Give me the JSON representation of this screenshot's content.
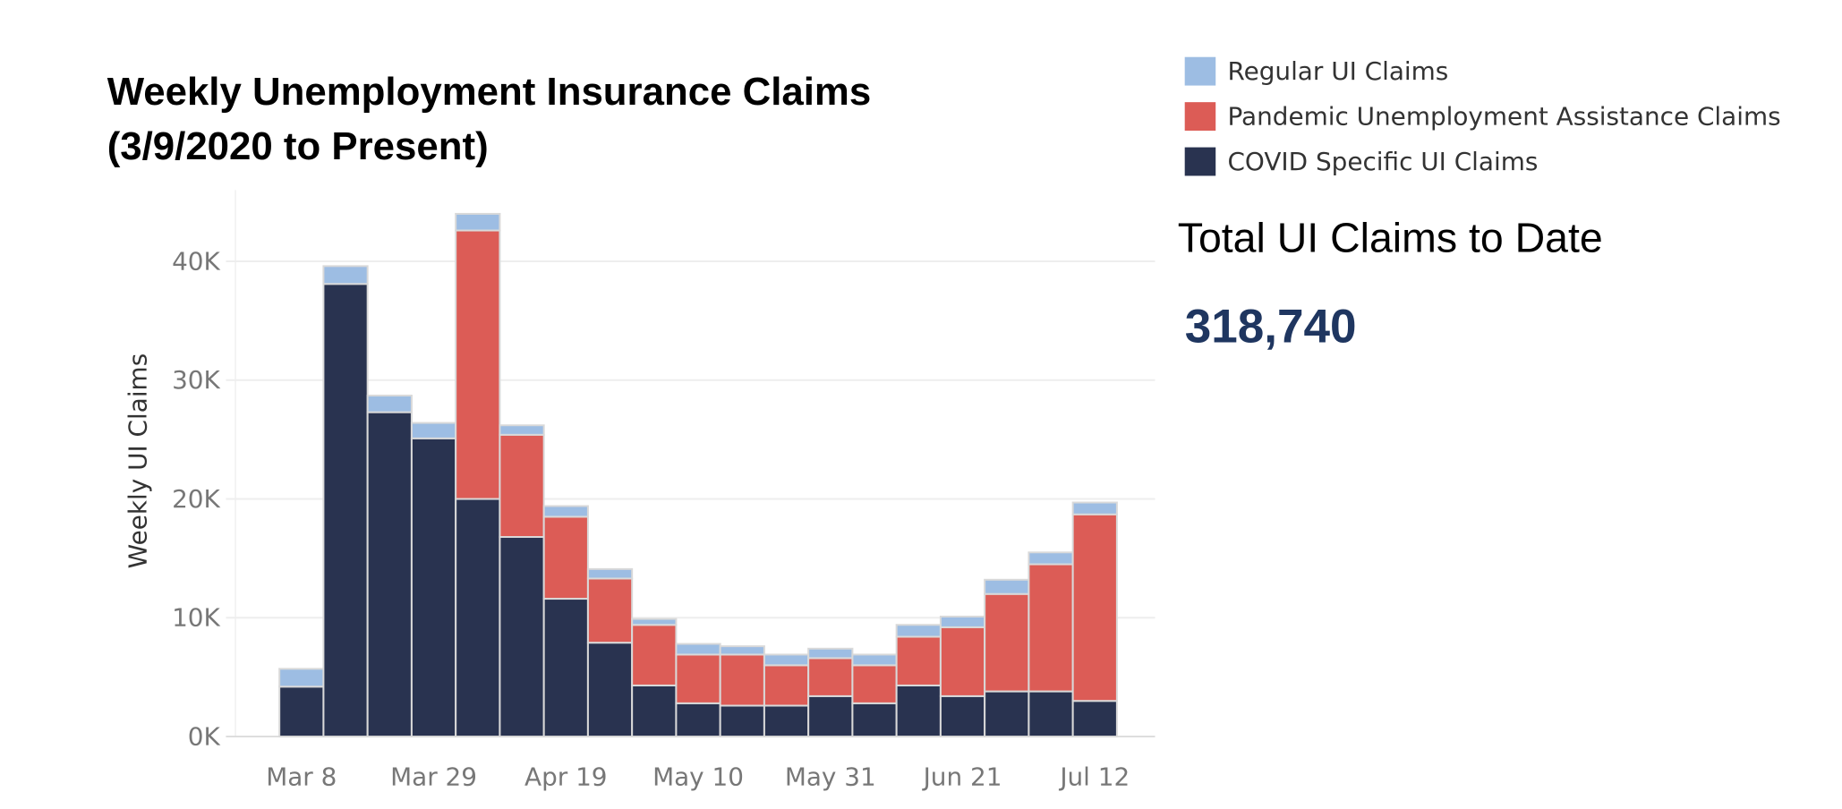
{
  "chart_data": {
    "type": "stacked_bar",
    "title": [
      "Weekly Unemployment Insurance Claims",
      "(3/9/2020 to Present)"
    ],
    "y_label": "Weekly UI Claims",
    "categories": [
      "Mar 8",
      null,
      null,
      "Mar 29",
      null,
      null,
      "Apr 19",
      null,
      null,
      "May 10",
      null,
      null,
      "May 31",
      null,
      null,
      "Jun 21",
      null,
      null,
      "Jul 12"
    ],
    "series": [
      {
        "name": "Regular UI Claims",
        "color": "#9dbde3",
        "values": [
          1500,
          1500,
          1400,
          1300,
          1400,
          800,
          900,
          800,
          500,
          900,
          700,
          900,
          800,
          900,
          1000,
          900,
          1200,
          1000,
          1000
        ]
      },
      {
        "name": "Pandemic Unemployment Assistance Claims",
        "color": "#dc5c56",
        "values": [
          0,
          0,
          0,
          0,
          22600,
          8600,
          6900,
          5400,
          5100,
          4100,
          4300,
          3400,
          3200,
          3200,
          4100,
          5800,
          8200,
          10700,
          15700
        ]
      },
      {
        "name": "COVID Specific UI Claims",
        "color": "#293350",
        "values": [
          4200,
          38100,
          27300,
          25100,
          20000,
          16800,
          11600,
          7900,
          4300,
          2800,
          2600,
          2600,
          3400,
          2800,
          4300,
          3400,
          3800,
          3800,
          3000
        ]
      }
    ],
    "ylim": [
      0,
      46000
    ],
    "yticks": [
      {
        "value": 0,
        "label": "0K"
      },
      {
        "value": 10000,
        "label": "10K"
      },
      {
        "value": 20000,
        "label": "20K"
      },
      {
        "value": 30000,
        "label": "30K"
      },
      {
        "value": 40000,
        "label": "40K"
      }
    ],
    "grid": true,
    "legend": "top-right"
  },
  "kpi": {
    "label": "Total UI Claims to Date",
    "value": "318,740"
  }
}
